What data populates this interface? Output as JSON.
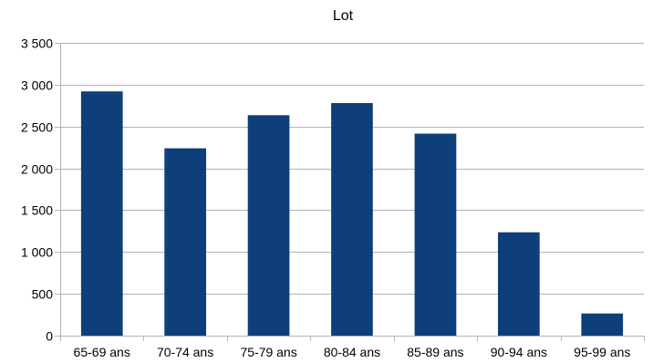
{
  "chart_data": {
    "type": "bar",
    "title": "Lot",
    "xlabel": "",
    "ylabel": "",
    "categories": [
      "65-69 ans",
      "70-74 ans",
      "75-79 ans",
      "80-84 ans",
      "85-89 ans",
      "90-94 ans",
      "95-99 ans"
    ],
    "values": [
      2920,
      2240,
      2635,
      2780,
      2415,
      1235,
      265
    ],
    "ylim": [
      0,
      3500
    ],
    "yticks": [
      0,
      500,
      1000,
      1500,
      2000,
      2500,
      3000,
      3500
    ],
    "ytick_labels": [
      "0",
      "500",
      "1 000",
      "1 500",
      "2 000",
      "2 500",
      "3 000",
      "3 500"
    ],
    "grid": true,
    "legend": "none",
    "colors": {
      "bar": "#0f3f7a",
      "grid": "#b3b3b3",
      "axis": "#b3b3b3"
    }
  }
}
